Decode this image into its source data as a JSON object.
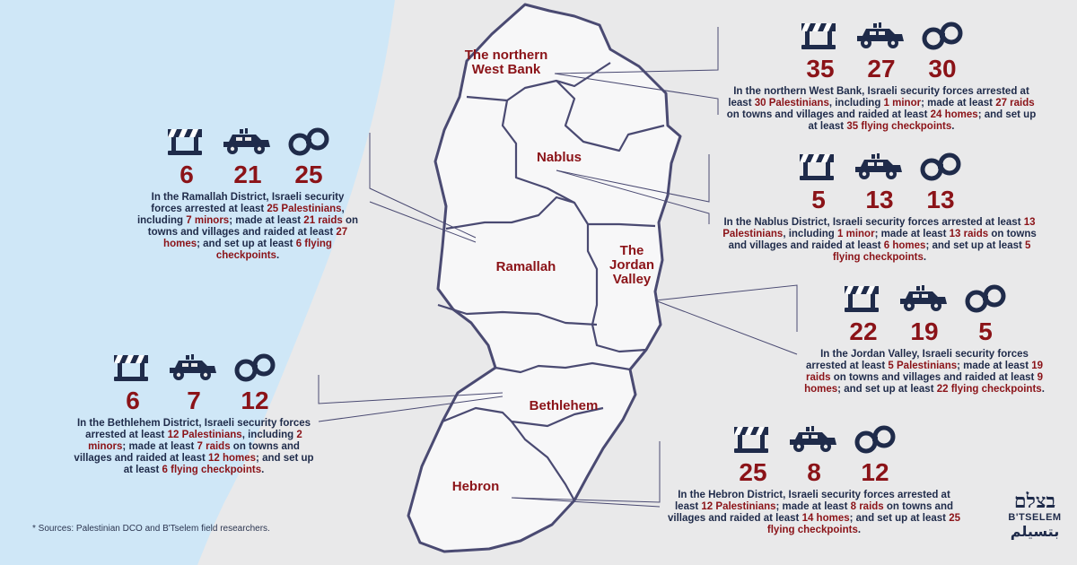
{
  "colors": {
    "sea": "#cfe7f7",
    "land": "#f7f7f8",
    "border": "#4a4a72",
    "accent": "#8b1318",
    "text": "#1f2b4a"
  },
  "regions": {
    "northern": "The northern West Bank",
    "nablus": "Nablus",
    "ramallah": "Ramallah",
    "jordan": "The Jordan Valley",
    "bethlehem": "Bethlehem",
    "hebron": "Hebron"
  },
  "icon_names": [
    "checkpoint-barrier-icon",
    "military-vehicle-icon",
    "handcuffs-icon"
  ],
  "panels": {
    "northern": {
      "checkpoints": "35",
      "raids": "27",
      "arrests": "30",
      "desc": [
        {
          "t": "In the northern West Bank, Israeli security forces arrested at least "
        },
        {
          "t": "30 Palestinians",
          "h": true
        },
        {
          "t": ", including "
        },
        {
          "t": "1 minor",
          "h": true
        },
        {
          "t": "; made at least "
        },
        {
          "t": "27 raids",
          "h": true
        },
        {
          "t": " on towns and villages and raided at least "
        },
        {
          "t": "24 homes",
          "h": true
        },
        {
          "t": "; and set up at least "
        },
        {
          "t": "35 flying checkpoints",
          "h": true
        },
        {
          "t": "."
        }
      ]
    },
    "ramallah": {
      "checkpoints": "6",
      "raids": "21",
      "arrests": "25",
      "desc": [
        {
          "t": "In the Ramallah District, Israeli security forces arrested at least "
        },
        {
          "t": "25 Palestinians",
          "h": true
        },
        {
          "t": ", including "
        },
        {
          "t": "7 minors",
          "h": true
        },
        {
          "t": "; made at least "
        },
        {
          "t": "21 raids",
          "h": true
        },
        {
          "t": " on towns and villages and raided at least "
        },
        {
          "t": "27 homes",
          "h": true
        },
        {
          "t": "; and set up at least "
        },
        {
          "t": "6 flying checkpoints",
          "h": true
        },
        {
          "t": "."
        }
      ]
    },
    "nablus": {
      "checkpoints": "5",
      "raids": "13",
      "arrests": "13",
      "desc": [
        {
          "t": "In the Nablus District, Israeli security forces arrested at least "
        },
        {
          "t": "13 Palestinians",
          "h": true
        },
        {
          "t": ", including "
        },
        {
          "t": "1 minor",
          "h": true
        },
        {
          "t": "; made at least "
        },
        {
          "t": "13 raids",
          "h": true
        },
        {
          "t": " on towns and villages and raided at least "
        },
        {
          "t": "6 homes",
          "h": true
        },
        {
          "t": "; and set up at least "
        },
        {
          "t": "5 flying checkpoints",
          "h": true
        },
        {
          "t": "."
        }
      ]
    },
    "jordan": {
      "checkpoints": "22",
      "raids": "19",
      "arrests": "5",
      "desc": [
        {
          "t": "In the Jordan Valley, Israeli security forces arrested at least "
        },
        {
          "t": "5 Palestinians",
          "h": true
        },
        {
          "t": "; made at least "
        },
        {
          "t": "19 raids",
          "h": true
        },
        {
          "t": " on towns and villages and raided at least "
        },
        {
          "t": "9 homes",
          "h": true
        },
        {
          "t": "; and set up at least "
        },
        {
          "t": "22 flying checkpoints",
          "h": true
        },
        {
          "t": "."
        }
      ]
    },
    "bethlehem": {
      "checkpoints": "6",
      "raids": "7",
      "arrests": "12",
      "desc": [
        {
          "t": "In the Bethlehem District, Israeli security forces arrested at least "
        },
        {
          "t": "12 Palestinians",
          "h": true
        },
        {
          "t": ", including "
        },
        {
          "t": "2 minors",
          "h": true
        },
        {
          "t": "; made at least "
        },
        {
          "t": "7 raids",
          "h": true
        },
        {
          "t": " on towns and villages and raided at least "
        },
        {
          "t": "12 homes",
          "h": true
        },
        {
          "t": "; and set up at least "
        },
        {
          "t": "6 flying checkpoints",
          "h": true
        },
        {
          "t": "."
        }
      ]
    },
    "hebron": {
      "checkpoints": "25",
      "raids": "8",
      "arrests": "12",
      "desc": [
        {
          "t": "In the Hebron District, Israeli security forces arrested at least "
        },
        {
          "t": "12 Palestinians",
          "h": true
        },
        {
          "t": "; made at least "
        },
        {
          "t": "8 raids",
          "h": true
        },
        {
          "t": " on towns and villages and raided at least "
        },
        {
          "t": "14 homes",
          "h": true
        },
        {
          "t": "; and set up at least "
        },
        {
          "t": "25 flying checkpoints",
          "h": true
        },
        {
          "t": "."
        }
      ]
    }
  },
  "footnote": "* Sources: Palestinian DCO and B'Tselem field researchers.",
  "logo": {
    "hebrew": "בצלם",
    "latin": "B'TSELEM",
    "arabic": "بتسيلم"
  }
}
